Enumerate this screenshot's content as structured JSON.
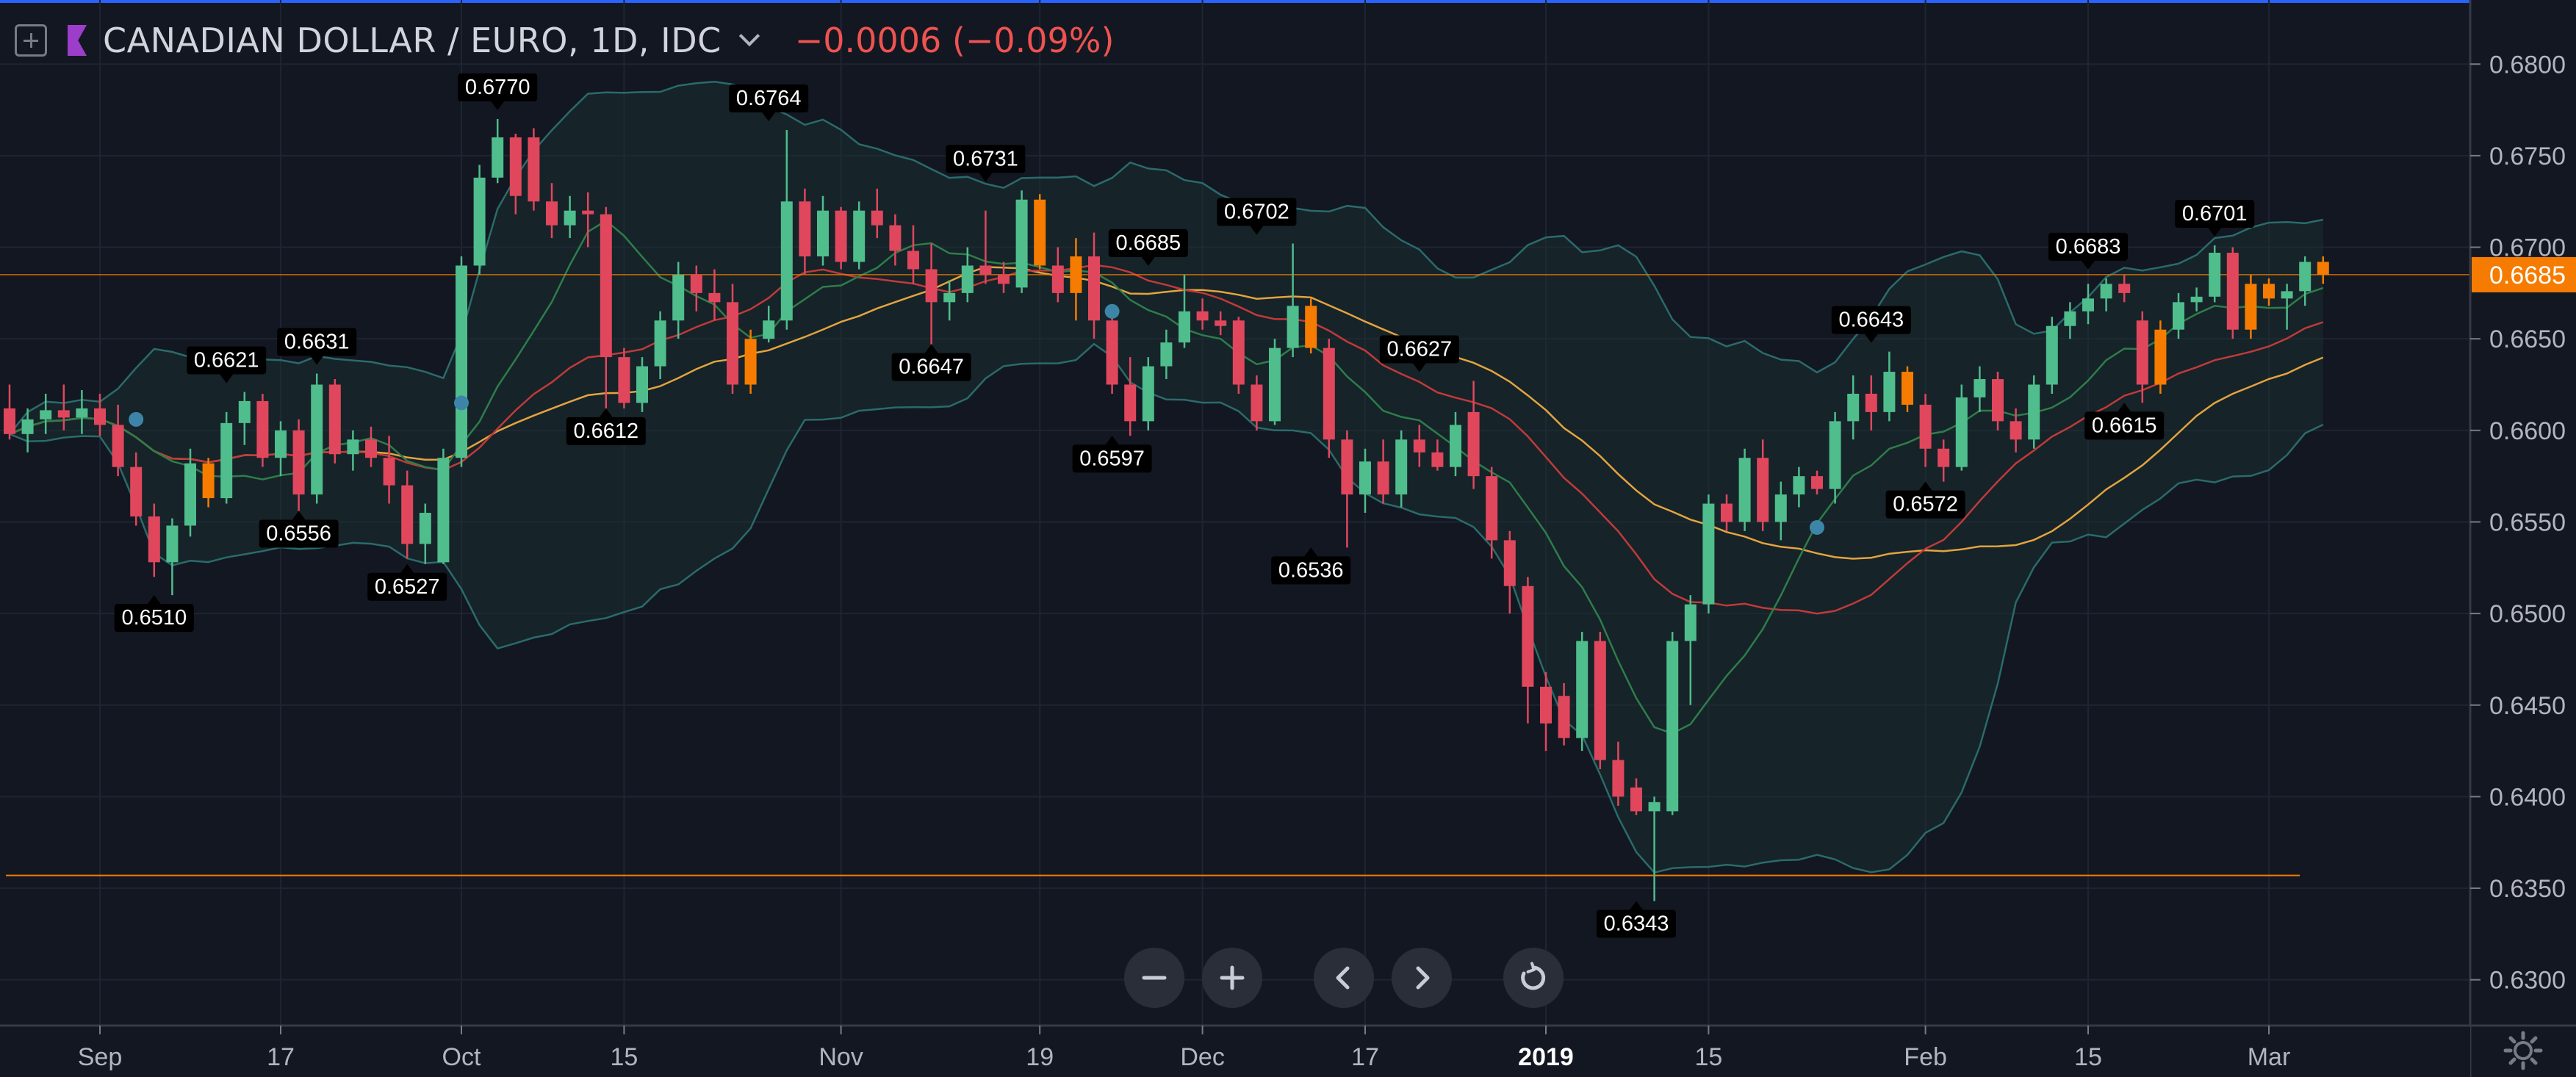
{
  "header": {
    "symbol": "CANADIAN DOLLAR / EURO, 1D, IDC",
    "change": "−0.0006 (−0.09%)"
  },
  "colors": {
    "background": "#131722",
    "up": "#26a69a",
    "up_body": "#4fbd8c",
    "down": "#e0475d",
    "highlight": "#f57c00",
    "last_price": "#f57c00",
    "bollinger": "#2a6b6b",
    "ma_slow": "#e3a43f",
    "ma_mid": "#c03a3a",
    "ma_fast": "#2e7d4a",
    "flag": "#9c3ec9"
  },
  "toolbar": {
    "icons": [
      "zoom-out-icon",
      "zoom-in-icon",
      "scroll-left-icon",
      "scroll-right-icon",
      "reset-icon"
    ]
  },
  "chart_data": {
    "type": "candlestick",
    "x_tick_labels": [
      "Sep",
      "17",
      "Oct",
      "15",
      "Nov",
      "19",
      "Dec",
      "17",
      "2019",
      "15",
      "Feb",
      "15",
      "Mar"
    ],
    "y_tick_labels": [
      "0.6800",
      "0.6750",
      "0.6700",
      "0.6650",
      "0.6600",
      "0.6550",
      "0.6500",
      "0.6450",
      "0.6400",
      "0.6350",
      "0.6300"
    ],
    "ylim": [
      0.6275,
      0.6835
    ],
    "last_price": 0.6685,
    "last_price_label": "0.6685",
    "support_level": 0.6357,
    "high_low_labels": [
      {
        "text": "0.6510",
        "price": 0.651,
        "type": "low",
        "idx": 8
      },
      {
        "text": "0.6621",
        "price": 0.6621,
        "type": "high",
        "idx": 12
      },
      {
        "text": "0.6556",
        "price": 0.6556,
        "type": "low",
        "idx": 16
      },
      {
        "text": "0.6631",
        "price": 0.6631,
        "type": "high",
        "idx": 17
      },
      {
        "text": "0.6527",
        "price": 0.6527,
        "type": "low",
        "idx": 22
      },
      {
        "text": "0.6770",
        "price": 0.677,
        "type": "high",
        "idx": 27
      },
      {
        "text": "0.6612",
        "price": 0.6612,
        "type": "low",
        "idx": 33
      },
      {
        "text": "0.6764",
        "price": 0.6764,
        "type": "high",
        "idx": 42
      },
      {
        "text": "0.6647",
        "price": 0.6647,
        "type": "low",
        "idx": 51
      },
      {
        "text": "0.6731",
        "price": 0.6731,
        "type": "high",
        "idx": 54
      },
      {
        "text": "0.6597",
        "price": 0.6597,
        "type": "low",
        "idx": 61
      },
      {
        "text": "0.6685",
        "price": 0.6685,
        "type": "high",
        "idx": 63
      },
      {
        "text": "0.6702",
        "price": 0.6702,
        "type": "high",
        "idx": 69
      },
      {
        "text": "0.6536",
        "price": 0.6536,
        "type": "low",
        "idx": 72
      },
      {
        "text": "0.6627",
        "price": 0.6627,
        "type": "high",
        "idx": 78
      },
      {
        "text": "0.6343",
        "price": 0.6343,
        "type": "low",
        "idx": 90
      },
      {
        "text": "0.6643",
        "price": 0.6643,
        "type": "high",
        "idx": 103
      },
      {
        "text": "0.6572",
        "price": 0.6572,
        "type": "low",
        "idx": 106
      },
      {
        "text": "0.6683",
        "price": 0.6683,
        "type": "high",
        "idx": 115
      },
      {
        "text": "0.6615",
        "price": 0.6615,
        "type": "low",
        "idx": 117
      },
      {
        "text": "0.6701",
        "price": 0.6701,
        "type": "high",
        "idx": 122
      }
    ],
    "markers": [
      {
        "idx": 7,
        "price": 0.6606
      },
      {
        "idx": 25,
        "price": 0.6615
      },
      {
        "idx": 61,
        "price": 0.6665
      },
      {
        "idx": 100,
        "price": 0.6547
      }
    ],
    "candles": [
      {
        "o": 0.6612,
        "h": 0.6625,
        "l": 0.6595,
        "c": 0.6598
      },
      {
        "o": 0.6598,
        "h": 0.6612,
        "l": 0.6588,
        "c": 0.6606
      },
      {
        "o": 0.6606,
        "h": 0.662,
        "l": 0.6598,
        "c": 0.6611
      },
      {
        "o": 0.6611,
        "h": 0.6625,
        "l": 0.66,
        "c": 0.6607
      },
      {
        "o": 0.6607,
        "h": 0.6622,
        "l": 0.6598,
        "c": 0.6612
      },
      {
        "o": 0.6612,
        "h": 0.662,
        "l": 0.6597,
        "c": 0.6603
      },
      {
        "o": 0.6603,
        "h": 0.6614,
        "l": 0.6575,
        "c": 0.658
      },
      {
        "o": 0.658,
        "h": 0.6588,
        "l": 0.6548,
        "c": 0.6553
      },
      {
        "o": 0.6553,
        "h": 0.656,
        "l": 0.652,
        "c": 0.6528
      },
      {
        "o": 0.6528,
        "h": 0.6552,
        "l": 0.651,
        "c": 0.6548
      },
      {
        "o": 0.6548,
        "h": 0.659,
        "l": 0.6542,
        "c": 0.6582
      },
      {
        "o": 0.6582,
        "h": 0.6585,
        "l": 0.6558,
        "c": 0.6563,
        "hl": true
      },
      {
        "o": 0.6563,
        "h": 0.661,
        "l": 0.656,
        "c": 0.6604
      },
      {
        "o": 0.6604,
        "h": 0.6621,
        "l": 0.6592,
        "c": 0.6616
      },
      {
        "o": 0.6616,
        "h": 0.662,
        "l": 0.658,
        "c": 0.6585
      },
      {
        "o": 0.6585,
        "h": 0.6605,
        "l": 0.6575,
        "c": 0.66
      },
      {
        "o": 0.66,
        "h": 0.6606,
        "l": 0.6556,
        "c": 0.6565
      },
      {
        "o": 0.6565,
        "h": 0.6631,
        "l": 0.656,
        "c": 0.6625
      },
      {
        "o": 0.6625,
        "h": 0.6628,
        "l": 0.6582,
        "c": 0.6587
      },
      {
        "o": 0.6587,
        "h": 0.66,
        "l": 0.6578,
        "c": 0.6595
      },
      {
        "o": 0.6595,
        "h": 0.6602,
        "l": 0.658,
        "c": 0.6585
      },
      {
        "o": 0.6585,
        "h": 0.6597,
        "l": 0.656,
        "c": 0.657
      },
      {
        "o": 0.657,
        "h": 0.6578,
        "l": 0.653,
        "c": 0.6538
      },
      {
        "o": 0.6538,
        "h": 0.656,
        "l": 0.6527,
        "c": 0.6555
      },
      {
        "o": 0.6528,
        "h": 0.659,
        "l": 0.6527,
        "c": 0.6585
      },
      {
        "o": 0.6585,
        "h": 0.6695,
        "l": 0.658,
        "c": 0.669
      },
      {
        "o": 0.669,
        "h": 0.6745,
        "l": 0.6685,
        "c": 0.6738
      },
      {
        "o": 0.6738,
        "h": 0.677,
        "l": 0.6735,
        "c": 0.676
      },
      {
        "o": 0.676,
        "h": 0.6762,
        "l": 0.6718,
        "c": 0.6728
      },
      {
        "o": 0.676,
        "h": 0.6765,
        "l": 0.672,
        "c": 0.6725
      },
      {
        "o": 0.6725,
        "h": 0.6735,
        "l": 0.6705,
        "c": 0.6712
      },
      {
        "o": 0.6712,
        "h": 0.6728,
        "l": 0.6705,
        "c": 0.672
      },
      {
        "o": 0.672,
        "h": 0.673,
        "l": 0.67,
        "c": 0.6718
      },
      {
        "o": 0.6718,
        "h": 0.6722,
        "l": 0.6612,
        "c": 0.664
      },
      {
        "o": 0.664,
        "h": 0.6645,
        "l": 0.6612,
        "c": 0.6615
      },
      {
        "o": 0.6615,
        "h": 0.664,
        "l": 0.661,
        "c": 0.6635
      },
      {
        "o": 0.6635,
        "h": 0.6665,
        "l": 0.6628,
        "c": 0.666
      },
      {
        "o": 0.666,
        "h": 0.6692,
        "l": 0.665,
        "c": 0.6685
      },
      {
        "o": 0.6685,
        "h": 0.669,
        "l": 0.6665,
        "c": 0.6675
      },
      {
        "o": 0.6675,
        "h": 0.6688,
        "l": 0.666,
        "c": 0.667
      },
      {
        "o": 0.667,
        "h": 0.668,
        "l": 0.662,
        "c": 0.6625
      },
      {
        "o": 0.6625,
        "h": 0.6655,
        "l": 0.662,
        "c": 0.665,
        "hl": true
      },
      {
        "o": 0.665,
        "h": 0.6668,
        "l": 0.6648,
        "c": 0.666
      },
      {
        "o": 0.666,
        "h": 0.6764,
        "l": 0.6655,
        "c": 0.6725
      },
      {
        "o": 0.6725,
        "h": 0.6732,
        "l": 0.6685,
        "c": 0.6695
      },
      {
        "o": 0.6695,
        "h": 0.6728,
        "l": 0.669,
        "c": 0.672
      },
      {
        "o": 0.672,
        "h": 0.6722,
        "l": 0.6688,
        "c": 0.6692
      },
      {
        "o": 0.6692,
        "h": 0.6725,
        "l": 0.6688,
        "c": 0.672
      },
      {
        "o": 0.672,
        "h": 0.6732,
        "l": 0.6705,
        "c": 0.6712
      },
      {
        "o": 0.6712,
        "h": 0.6718,
        "l": 0.669,
        "c": 0.6698
      },
      {
        "o": 0.6698,
        "h": 0.6712,
        "l": 0.668,
        "c": 0.6688
      },
      {
        "o": 0.6688,
        "h": 0.6702,
        "l": 0.6647,
        "c": 0.667
      },
      {
        "o": 0.667,
        "h": 0.6682,
        "l": 0.666,
        "c": 0.6675
      },
      {
        "o": 0.6675,
        "h": 0.67,
        "l": 0.667,
        "c": 0.669
      },
      {
        "o": 0.669,
        "h": 0.672,
        "l": 0.668,
        "c": 0.6685
      },
      {
        "o": 0.6685,
        "h": 0.6692,
        "l": 0.6675,
        "c": 0.668
      },
      {
        "o": 0.6678,
        "h": 0.6731,
        "l": 0.6675,
        "c": 0.6726
      },
      {
        "o": 0.6726,
        "h": 0.6729,
        "l": 0.6688,
        "c": 0.669,
        "hl": true
      },
      {
        "o": 0.669,
        "h": 0.67,
        "l": 0.667,
        "c": 0.6675
      },
      {
        "o": 0.6675,
        "h": 0.6705,
        "l": 0.666,
        "c": 0.6695,
        "hl": true
      },
      {
        "o": 0.6695,
        "h": 0.6708,
        "l": 0.665,
        "c": 0.666
      },
      {
        "o": 0.666,
        "h": 0.6668,
        "l": 0.662,
        "c": 0.6625
      },
      {
        "o": 0.6625,
        "h": 0.664,
        "l": 0.6597,
        "c": 0.6605
      },
      {
        "o": 0.6605,
        "h": 0.664,
        "l": 0.66,
        "c": 0.6635
      },
      {
        "o": 0.6635,
        "h": 0.6655,
        "l": 0.6628,
        "c": 0.6648
      },
      {
        "o": 0.6648,
        "h": 0.6685,
        "l": 0.6645,
        "c": 0.6665
      },
      {
        "o": 0.6665,
        "h": 0.6672,
        "l": 0.6655,
        "c": 0.666
      },
      {
        "o": 0.666,
        "h": 0.6665,
        "l": 0.6652,
        "c": 0.6657
      },
      {
        "o": 0.666,
        "h": 0.6662,
        "l": 0.662,
        "c": 0.6625
      },
      {
        "o": 0.6625,
        "h": 0.663,
        "l": 0.66,
        "c": 0.6605
      },
      {
        "o": 0.6605,
        "h": 0.665,
        "l": 0.6603,
        "c": 0.6645
      },
      {
        "o": 0.6645,
        "h": 0.6702,
        "l": 0.664,
        "c": 0.6668
      },
      {
        "o": 0.6668,
        "h": 0.6672,
        "l": 0.6642,
        "c": 0.6645,
        "hl": true
      },
      {
        "o": 0.6645,
        "h": 0.665,
        "l": 0.6585,
        "c": 0.6595
      },
      {
        "o": 0.6595,
        "h": 0.66,
        "l": 0.6536,
        "c": 0.6565
      },
      {
        "o": 0.6565,
        "h": 0.659,
        "l": 0.6555,
        "c": 0.6583
      },
      {
        "o": 0.6583,
        "h": 0.6595,
        "l": 0.656,
        "c": 0.6565
      },
      {
        "o": 0.6565,
        "h": 0.66,
        "l": 0.6558,
        "c": 0.6595
      },
      {
        "o": 0.6595,
        "h": 0.6603,
        "l": 0.658,
        "c": 0.6588
      },
      {
        "o": 0.6588,
        "h": 0.6595,
        "l": 0.6578,
        "c": 0.658
      },
      {
        "o": 0.658,
        "h": 0.661,
        "l": 0.6575,
        "c": 0.6603
      },
      {
        "o": 0.661,
        "h": 0.6627,
        "l": 0.6568,
        "c": 0.6575
      },
      {
        "o": 0.6575,
        "h": 0.658,
        "l": 0.653,
        "c": 0.654
      },
      {
        "o": 0.654,
        "h": 0.6545,
        "l": 0.65,
        "c": 0.6515
      },
      {
        "o": 0.6515,
        "h": 0.652,
        "l": 0.644,
        "c": 0.646
      },
      {
        "o": 0.646,
        "h": 0.6468,
        "l": 0.6425,
        "c": 0.644
      },
      {
        "o": 0.6455,
        "h": 0.6462,
        "l": 0.6428,
        "c": 0.6432
      },
      {
        "o": 0.6432,
        "h": 0.649,
        "l": 0.6425,
        "c": 0.6485
      },
      {
        "o": 0.6485,
        "h": 0.649,
        "l": 0.6415,
        "c": 0.642
      },
      {
        "o": 0.642,
        "h": 0.643,
        "l": 0.6395,
        "c": 0.64
      },
      {
        "o": 0.6405,
        "h": 0.641,
        "l": 0.639,
        "c": 0.6392
      },
      {
        "o": 0.6392,
        "h": 0.64,
        "l": 0.6343,
        "c": 0.6397
      },
      {
        "o": 0.6392,
        "h": 0.649,
        "l": 0.639,
        "c": 0.6485
      },
      {
        "o": 0.6485,
        "h": 0.651,
        "l": 0.645,
        "c": 0.6505
      },
      {
        "o": 0.6505,
        "h": 0.6565,
        "l": 0.65,
        "c": 0.656
      },
      {
        "o": 0.656,
        "h": 0.6565,
        "l": 0.6545,
        "c": 0.655
      },
      {
        "o": 0.655,
        "h": 0.659,
        "l": 0.6545,
        "c": 0.6585
      },
      {
        "o": 0.6585,
        "h": 0.6595,
        "l": 0.6545,
        "c": 0.655
      },
      {
        "o": 0.655,
        "h": 0.6572,
        "l": 0.654,
        "c": 0.6565
      },
      {
        "o": 0.6565,
        "h": 0.658,
        "l": 0.6558,
        "c": 0.6575
      },
      {
        "o": 0.6575,
        "h": 0.6578,
        "l": 0.6565,
        "c": 0.6568
      },
      {
        "o": 0.6568,
        "h": 0.661,
        "l": 0.656,
        "c": 0.6605
      },
      {
        "o": 0.6605,
        "h": 0.663,
        "l": 0.6595,
        "c": 0.662
      },
      {
        "o": 0.662,
        "h": 0.663,
        "l": 0.66,
        "c": 0.661
      },
      {
        "o": 0.661,
        "h": 0.6643,
        "l": 0.6605,
        "c": 0.6632
      },
      {
        "o": 0.6632,
        "h": 0.6635,
        "l": 0.661,
        "c": 0.6614,
        "hl": true
      },
      {
        "o": 0.6614,
        "h": 0.662,
        "l": 0.658,
        "c": 0.659
      },
      {
        "o": 0.659,
        "h": 0.6595,
        "l": 0.6572,
        "c": 0.658
      },
      {
        "o": 0.658,
        "h": 0.6625,
        "l": 0.6578,
        "c": 0.6618
      },
      {
        "o": 0.6618,
        "h": 0.6635,
        "l": 0.661,
        "c": 0.6628
      },
      {
        "o": 0.6628,
        "h": 0.6632,
        "l": 0.66,
        "c": 0.6605
      },
      {
        "o": 0.6605,
        "h": 0.6612,
        "l": 0.6588,
        "c": 0.6595
      },
      {
        "o": 0.6595,
        "h": 0.663,
        "l": 0.659,
        "c": 0.6625
      },
      {
        "o": 0.6625,
        "h": 0.6662,
        "l": 0.662,
        "c": 0.6657
      },
      {
        "o": 0.6657,
        "h": 0.667,
        "l": 0.665,
        "c": 0.6665
      },
      {
        "o": 0.6665,
        "h": 0.668,
        "l": 0.6658,
        "c": 0.6672
      },
      {
        "o": 0.6672,
        "h": 0.6683,
        "l": 0.6665,
        "c": 0.668
      },
      {
        "o": 0.668,
        "h": 0.6685,
        "l": 0.667,
        "c": 0.6675
      },
      {
        "o": 0.666,
        "h": 0.6665,
        "l": 0.6615,
        "c": 0.6625
      },
      {
        "o": 0.6625,
        "h": 0.666,
        "l": 0.662,
        "c": 0.6655,
        "hl": true
      },
      {
        "o": 0.6655,
        "h": 0.6675,
        "l": 0.665,
        "c": 0.667
      },
      {
        "o": 0.667,
        "h": 0.6678,
        "l": 0.6665,
        "c": 0.6673
      },
      {
        "o": 0.6673,
        "h": 0.6701,
        "l": 0.667,
        "c": 0.6697
      },
      {
        "o": 0.6697,
        "h": 0.67,
        "l": 0.665,
        "c": 0.6655
      },
      {
        "o": 0.6655,
        "h": 0.6685,
        "l": 0.665,
        "c": 0.668,
        "hl": true
      },
      {
        "o": 0.668,
        "h": 0.6683,
        "l": 0.6668,
        "c": 0.6672,
        "hl": true
      },
      {
        "o": 0.6672,
        "h": 0.668,
        "l": 0.6655,
        "c": 0.6676
      },
      {
        "o": 0.6676,
        "h": 0.6695,
        "l": 0.6668,
        "c": 0.6692
      },
      {
        "o": 0.6692,
        "h": 0.6695,
        "l": 0.668,
        "c": 0.6685,
        "hl": true
      }
    ]
  }
}
